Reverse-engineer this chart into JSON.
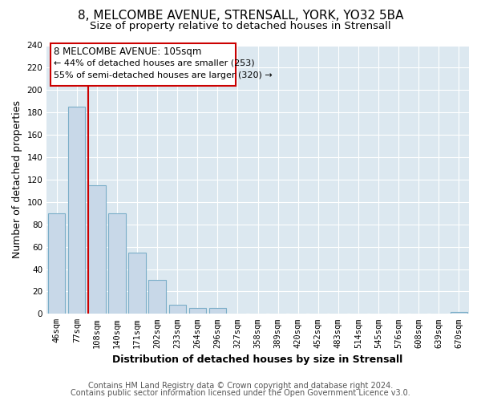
{
  "title": "8, MELCOMBE AVENUE, STRENSALL, YORK, YO32 5BA",
  "subtitle": "Size of property relative to detached houses in Strensall",
  "xlabel": "Distribution of detached houses by size in Strensall",
  "ylabel": "Number of detached properties",
  "bar_labels": [
    "46sqm",
    "77sqm",
    "108sqm",
    "140sqm",
    "171sqm",
    "202sqm",
    "233sqm",
    "264sqm",
    "296sqm",
    "327sqm",
    "358sqm",
    "389sqm",
    "420sqm",
    "452sqm",
    "483sqm",
    "514sqm",
    "545sqm",
    "576sqm",
    "608sqm",
    "639sqm",
    "670sqm"
  ],
  "bar_values": [
    90,
    185,
    115,
    90,
    55,
    30,
    8,
    5,
    5,
    0,
    0,
    0,
    0,
    0,
    0,
    0,
    0,
    0,
    0,
    0,
    2
  ],
  "bar_color": "#c8d8e8",
  "bar_edge_color": "#7baec8",
  "property_line_x": 2,
  "property_line_color": "#cc0000",
  "ylim": [
    0,
    240
  ],
  "yticks": [
    0,
    20,
    40,
    60,
    80,
    100,
    120,
    140,
    160,
    180,
    200,
    220,
    240
  ],
  "annotation_title": "8 MELCOMBE AVENUE: 105sqm",
  "annotation_line1": "← 44% of detached houses are smaller (253)",
  "annotation_line2": "55% of semi-detached houses are larger (320) →",
  "annotation_box_color": "#ffffff",
  "annotation_box_edge": "#cc0000",
  "footer_line1": "Contains HM Land Registry data © Crown copyright and database right 2024.",
  "footer_line2": "Contains public sector information licensed under the Open Government Licence v3.0.",
  "background_color": "#ffffff",
  "plot_bg_color": "#dce8f0",
  "grid_color": "#ffffff",
  "title_fontsize": 11,
  "subtitle_fontsize": 9.5,
  "axis_label_fontsize": 9,
  "tick_fontsize": 7.5,
  "footer_fontsize": 7,
  "annotation_fontsize_title": 8.5,
  "annotation_fontsize_body": 8
}
